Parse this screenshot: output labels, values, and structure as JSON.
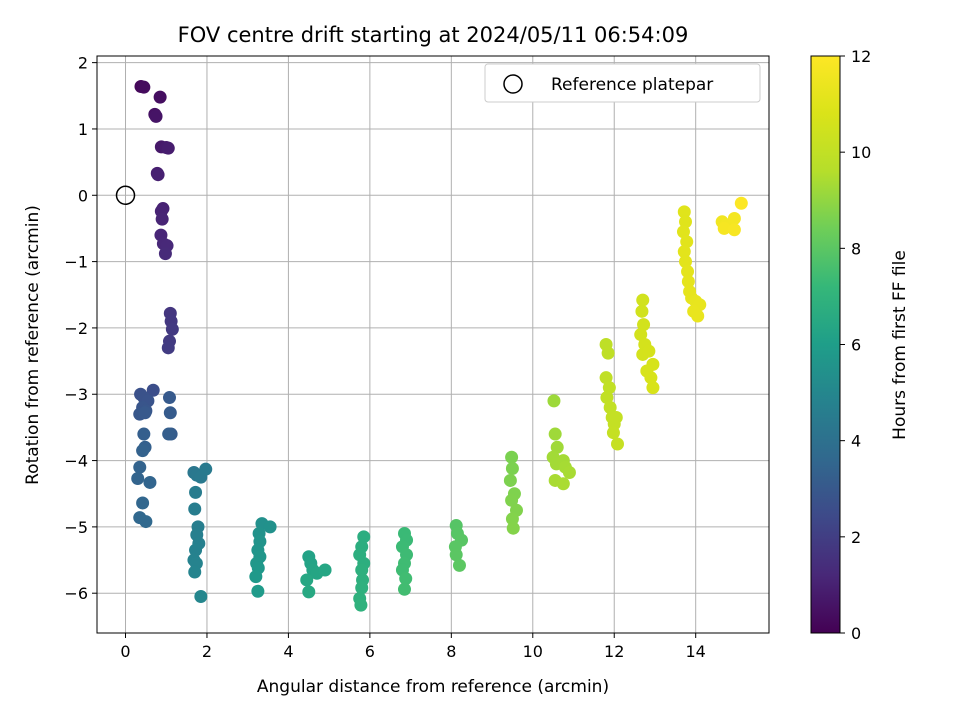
{
  "chart_data": {
    "type": "scatter",
    "title": "FOV centre drift starting at 2024/05/11 06:54:09",
    "xlabel": "Angular distance from reference (arcmin)",
    "ylabel": "Rotation from reference (arcmin)",
    "xlim": [
      -0.7,
      15.8
    ],
    "ylim": [
      -6.6,
      2.1
    ],
    "xticks": [
      "0",
      "2",
      "4",
      "6",
      "8",
      "10",
      "12",
      "14"
    ],
    "yticks": [
      "2",
      "1",
      "0",
      "−1",
      "−2",
      "−3",
      "−4",
      "−5",
      "−6"
    ],
    "grid": true,
    "legend": {
      "position": "top-right",
      "label": "Reference platepar",
      "marker": "open-circle"
    },
    "reference_point": {
      "x": 0,
      "y": 0
    },
    "colorbar": {
      "label": "Hours from first FF file",
      "range": [
        0,
        12
      ],
      "ticks": [
        "0",
        "2",
        "4",
        "6",
        "8",
        "10",
        "12"
      ],
      "colormap": "viridis"
    },
    "points": [
      {
        "x": 0.38,
        "y": 1.64,
        "h": 0.2
      },
      {
        "x": 0.45,
        "y": 1.63,
        "h": 0.3
      },
      {
        "x": 0.85,
        "y": 1.48,
        "h": 0.4
      },
      {
        "x": 0.72,
        "y": 1.22,
        "h": 0.5
      },
      {
        "x": 0.75,
        "y": 1.19,
        "h": 0.6
      },
      {
        "x": 0.88,
        "y": 0.73,
        "h": 0.7
      },
      {
        "x": 1.0,
        "y": 0.72,
        "h": 0.8
      },
      {
        "x": 1.05,
        "y": 0.71,
        "h": 0.85
      },
      {
        "x": 0.78,
        "y": 0.33,
        "h": 0.9
      },
      {
        "x": 0.8,
        "y": 0.31,
        "h": 0.95
      },
      {
        "x": 0.92,
        "y": -0.2,
        "h": 1.0
      },
      {
        "x": 0.88,
        "y": -0.24,
        "h": 1.05
      },
      {
        "x": 0.9,
        "y": -0.36,
        "h": 1.1
      },
      {
        "x": 0.87,
        "y": -0.6,
        "h": 1.15
      },
      {
        "x": 0.93,
        "y": -0.73,
        "h": 1.2
      },
      {
        "x": 1.02,
        "y": -0.76,
        "h": 1.25
      },
      {
        "x": 0.98,
        "y": -0.88,
        "h": 1.3
      },
      {
        "x": 1.1,
        "y": -1.78,
        "h": 1.7
      },
      {
        "x": 1.12,
        "y": -1.9,
        "h": 1.75
      },
      {
        "x": 1.15,
        "y": -2.02,
        "h": 1.8
      },
      {
        "x": 1.08,
        "y": -2.2,
        "h": 1.85
      },
      {
        "x": 1.05,
        "y": -2.3,
        "h": 1.9
      },
      {
        "x": 0.68,
        "y": -2.94,
        "h": 2.6
      },
      {
        "x": 0.37,
        "y": -3.0,
        "h": 2.7
      },
      {
        "x": 0.45,
        "y": -3.05,
        "h": 2.75
      },
      {
        "x": 0.55,
        "y": -3.1,
        "h": 2.8
      },
      {
        "x": 0.42,
        "y": -3.2,
        "h": 2.85
      },
      {
        "x": 0.5,
        "y": -3.25,
        "h": 2.9
      },
      {
        "x": 0.35,
        "y": -3.3,
        "h": 2.95
      },
      {
        "x": 0.48,
        "y": -3.28,
        "h": 3.0
      },
      {
        "x": 1.08,
        "y": -3.05,
        "h": 3.05
      },
      {
        "x": 1.1,
        "y": -3.28,
        "h": 3.1
      },
      {
        "x": 1.12,
        "y": -3.6,
        "h": 3.15
      },
      {
        "x": 1.06,
        "y": -3.6,
        "h": 3.2
      },
      {
        "x": 0.45,
        "y": -3.6,
        "h": 3.25
      },
      {
        "x": 0.48,
        "y": -3.8,
        "h": 3.3
      },
      {
        "x": 0.42,
        "y": -3.85,
        "h": 3.35
      },
      {
        "x": 0.35,
        "y": -4.1,
        "h": 3.4
      },
      {
        "x": 0.3,
        "y": -4.27,
        "h": 3.45
      },
      {
        "x": 0.6,
        "y": -4.33,
        "h": 3.5
      },
      {
        "x": 0.42,
        "y": -4.64,
        "h": 3.55
      },
      {
        "x": 0.35,
        "y": -4.86,
        "h": 3.6
      },
      {
        "x": 0.5,
        "y": -4.92,
        "h": 3.65
      },
      {
        "x": 1.68,
        "y": -4.18,
        "h": 4.3
      },
      {
        "x": 1.75,
        "y": -4.22,
        "h": 4.35
      },
      {
        "x": 1.85,
        "y": -4.25,
        "h": 4.4
      },
      {
        "x": 1.97,
        "y": -4.13,
        "h": 4.45
      },
      {
        "x": 1.72,
        "y": -4.48,
        "h": 4.5
      },
      {
        "x": 1.7,
        "y": -4.73,
        "h": 4.55
      },
      {
        "x": 1.78,
        "y": -5.0,
        "h": 4.6
      },
      {
        "x": 1.75,
        "y": -5.12,
        "h": 4.65
      },
      {
        "x": 1.8,
        "y": -5.25,
        "h": 4.7
      },
      {
        "x": 1.72,
        "y": -5.35,
        "h": 4.75
      },
      {
        "x": 1.68,
        "y": -5.5,
        "h": 4.8
      },
      {
        "x": 1.74,
        "y": -5.55,
        "h": 4.85
      },
      {
        "x": 1.7,
        "y": -5.68,
        "h": 4.9
      },
      {
        "x": 1.85,
        "y": -6.05,
        "h": 4.95
      },
      {
        "x": 3.35,
        "y": -4.95,
        "h": 5.4
      },
      {
        "x": 3.55,
        "y": -5.0,
        "h": 5.45
      },
      {
        "x": 3.28,
        "y": -5.1,
        "h": 5.5
      },
      {
        "x": 3.3,
        "y": -5.22,
        "h": 5.55
      },
      {
        "x": 3.25,
        "y": -5.35,
        "h": 5.6
      },
      {
        "x": 3.3,
        "y": -5.45,
        "h": 5.65
      },
      {
        "x": 3.22,
        "y": -5.55,
        "h": 5.7
      },
      {
        "x": 3.26,
        "y": -5.62,
        "h": 5.75
      },
      {
        "x": 3.2,
        "y": -5.75,
        "h": 5.8
      },
      {
        "x": 3.25,
        "y": -5.97,
        "h": 5.85
      },
      {
        "x": 4.5,
        "y": -5.45,
        "h": 6.2
      },
      {
        "x": 4.55,
        "y": -5.55,
        "h": 6.25
      },
      {
        "x": 4.6,
        "y": -5.65,
        "h": 6.3
      },
      {
        "x": 4.7,
        "y": -5.7,
        "h": 6.35
      },
      {
        "x": 4.9,
        "y": -5.65,
        "h": 6.4
      },
      {
        "x": 4.45,
        "y": -5.8,
        "h": 6.45
      },
      {
        "x": 4.5,
        "y": -5.98,
        "h": 6.5
      },
      {
        "x": 5.85,
        "y": -5.15,
        "h": 6.7
      },
      {
        "x": 5.8,
        "y": -5.3,
        "h": 6.72
      },
      {
        "x": 5.75,
        "y": -5.42,
        "h": 6.75
      },
      {
        "x": 5.85,
        "y": -5.55,
        "h": 6.78
      },
      {
        "x": 5.8,
        "y": -5.65,
        "h": 6.8
      },
      {
        "x": 5.82,
        "y": -5.8,
        "h": 6.82
      },
      {
        "x": 5.8,
        "y": -5.92,
        "h": 6.85
      },
      {
        "x": 5.75,
        "y": -6.08,
        "h": 6.88
      },
      {
        "x": 5.78,
        "y": -6.18,
        "h": 6.9
      },
      {
        "x": 6.85,
        "y": -5.1,
        "h": 7.3
      },
      {
        "x": 6.9,
        "y": -5.2,
        "h": 7.32
      },
      {
        "x": 6.8,
        "y": -5.3,
        "h": 7.35
      },
      {
        "x": 6.9,
        "y": -5.42,
        "h": 7.38
      },
      {
        "x": 6.85,
        "y": -5.55,
        "h": 7.4
      },
      {
        "x": 6.8,
        "y": -5.65,
        "h": 7.42
      },
      {
        "x": 6.88,
        "y": -5.78,
        "h": 7.45
      },
      {
        "x": 6.85,
        "y": -5.94,
        "h": 7.48
      },
      {
        "x": 8.12,
        "y": -4.98,
        "h": 7.9
      },
      {
        "x": 8.15,
        "y": -5.1,
        "h": 7.92
      },
      {
        "x": 8.25,
        "y": -5.2,
        "h": 7.95
      },
      {
        "x": 8.1,
        "y": -5.3,
        "h": 7.98
      },
      {
        "x": 8.12,
        "y": -5.42,
        "h": 8.0
      },
      {
        "x": 8.2,
        "y": -5.58,
        "h": 8.02
      },
      {
        "x": 9.48,
        "y": -3.95,
        "h": 8.6
      },
      {
        "x": 9.5,
        "y": -4.12,
        "h": 8.62
      },
      {
        "x": 9.45,
        "y": -4.3,
        "h": 8.65
      },
      {
        "x": 9.55,
        "y": -4.5,
        "h": 8.68
      },
      {
        "x": 9.48,
        "y": -4.6,
        "h": 8.7
      },
      {
        "x": 9.6,
        "y": -4.75,
        "h": 8.72
      },
      {
        "x": 9.5,
        "y": -4.88,
        "h": 8.75
      },
      {
        "x": 9.52,
        "y": -5.02,
        "h": 8.78
      },
      {
        "x": 10.52,
        "y": -3.1,
        "h": 9.2
      },
      {
        "x": 10.55,
        "y": -3.6,
        "h": 9.22
      },
      {
        "x": 10.6,
        "y": -3.8,
        "h": 9.25
      },
      {
        "x": 10.5,
        "y": -3.95,
        "h": 9.28
      },
      {
        "x": 10.58,
        "y": -4.05,
        "h": 9.3
      },
      {
        "x": 10.75,
        "y": -4.0,
        "h": 9.32
      },
      {
        "x": 10.8,
        "y": -4.1,
        "h": 9.35
      },
      {
        "x": 10.9,
        "y": -4.18,
        "h": 9.38
      },
      {
        "x": 10.55,
        "y": -4.3,
        "h": 9.4
      },
      {
        "x": 10.75,
        "y": -4.35,
        "h": 9.42
      },
      {
        "x": 11.8,
        "y": -2.25,
        "h": 9.9
      },
      {
        "x": 11.85,
        "y": -2.38,
        "h": 9.92
      },
      {
        "x": 11.8,
        "y": -2.75,
        "h": 9.95
      },
      {
        "x": 11.88,
        "y": -2.9,
        "h": 9.98
      },
      {
        "x": 11.82,
        "y": -3.05,
        "h": 10.0
      },
      {
        "x": 11.9,
        "y": -3.2,
        "h": 10.02
      },
      {
        "x": 11.95,
        "y": -3.35,
        "h": 10.05
      },
      {
        "x": 12.0,
        "y": -3.45,
        "h": 10.08
      },
      {
        "x": 12.05,
        "y": -3.35,
        "h": 10.1
      },
      {
        "x": 11.98,
        "y": -3.58,
        "h": 10.12
      },
      {
        "x": 12.08,
        "y": -3.75,
        "h": 10.15
      },
      {
        "x": 12.7,
        "y": -1.58,
        "h": 10.5
      },
      {
        "x": 12.68,
        "y": -1.75,
        "h": 10.52
      },
      {
        "x": 12.72,
        "y": -1.95,
        "h": 10.55
      },
      {
        "x": 12.65,
        "y": -2.1,
        "h": 10.58
      },
      {
        "x": 12.75,
        "y": -2.25,
        "h": 10.6
      },
      {
        "x": 12.7,
        "y": -2.4,
        "h": 10.62
      },
      {
        "x": 12.85,
        "y": -2.35,
        "h": 10.65
      },
      {
        "x": 12.95,
        "y": -2.55,
        "h": 10.68
      },
      {
        "x": 12.8,
        "y": -2.65,
        "h": 10.7
      },
      {
        "x": 12.9,
        "y": -2.75,
        "h": 10.72
      },
      {
        "x": 12.95,
        "y": -2.9,
        "h": 10.75
      },
      {
        "x": 13.72,
        "y": -0.25,
        "h": 11.0
      },
      {
        "x": 13.75,
        "y": -0.4,
        "h": 11.02
      },
      {
        "x": 13.7,
        "y": -0.55,
        "h": 11.05
      },
      {
        "x": 13.78,
        "y": -0.7,
        "h": 11.08
      },
      {
        "x": 13.72,
        "y": -0.85,
        "h": 11.1
      },
      {
        "x": 13.75,
        "y": -1.0,
        "h": 11.12
      },
      {
        "x": 13.8,
        "y": -1.15,
        "h": 11.15
      },
      {
        "x": 13.82,
        "y": -1.3,
        "h": 11.18
      },
      {
        "x": 13.85,
        "y": -1.45,
        "h": 11.2
      },
      {
        "x": 13.9,
        "y": -1.55,
        "h": 11.22
      },
      {
        "x": 14.0,
        "y": -1.6,
        "h": 11.25
      },
      {
        "x": 14.1,
        "y": -1.65,
        "h": 11.28
      },
      {
        "x": 13.95,
        "y": -1.75,
        "h": 11.3
      },
      {
        "x": 14.05,
        "y": -1.82,
        "h": 11.32
      },
      {
        "x": 14.65,
        "y": -0.4,
        "h": 11.6
      },
      {
        "x": 14.75,
        "y": -0.45,
        "h": 11.65
      },
      {
        "x": 14.95,
        "y": -0.35,
        "h": 11.7
      },
      {
        "x": 14.7,
        "y": -0.5,
        "h": 11.75
      },
      {
        "x": 14.95,
        "y": -0.52,
        "h": 11.8
      },
      {
        "x": 15.12,
        "y": -0.12,
        "h": 11.95
      }
    ]
  }
}
